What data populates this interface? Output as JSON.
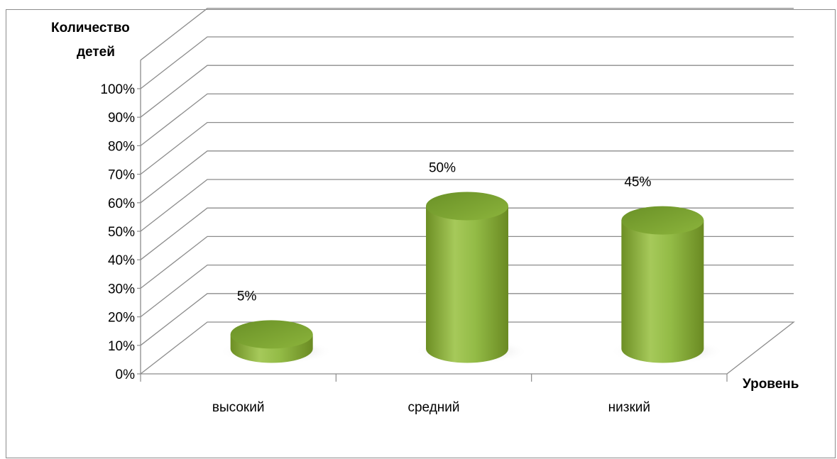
{
  "chart_data": {
    "type": "bar",
    "subtype": "3d-cylinder",
    "title": "",
    "ylabel_lines": [
      "Количество",
      "детей"
    ],
    "xlabel": "Уровень",
    "categories": [
      "высокий",
      "средний",
      "низкий"
    ],
    "values": [
      5,
      50,
      45
    ],
    "value_labels": [
      "5%",
      "50%",
      "45%"
    ],
    "ylim": [
      0,
      100
    ],
    "yticks": [
      "0%",
      "10%",
      "20%",
      "30%",
      "40%",
      "50%",
      "60%",
      "70%",
      "80%",
      "90%",
      "100%"
    ],
    "grid": true,
    "legend": "none",
    "colors": {
      "bar": "#8db53a",
      "bar_light": "#b6d46a",
      "bar_dark": "#6a8a22",
      "top_dark": "#6f9428",
      "grid": "#8c8c8c",
      "axis": "#8c8c8c"
    }
  }
}
